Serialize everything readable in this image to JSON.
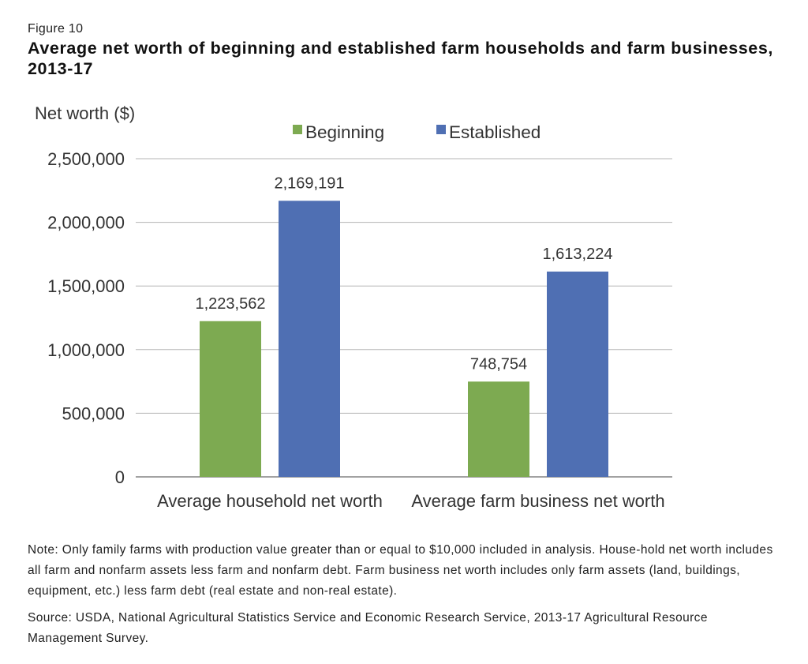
{
  "figure_label": "Figure 10",
  "title": "Average net worth of beginning and established farm households and farm businesses, 2013-17",
  "note": "Note: Only family farms with production value greater than or equal to $10,000 included in analysis.  House-hold net worth includes all farm and nonfarm assets less farm and nonfarm debt. Farm business net worth includes only farm assets (land, buildings, equipment, etc.) less farm debt (real estate and non-real estate).",
  "source": "Source: USDA, National Agricultural Statistics Service and Economic Research Service, 2013-17 Agricultural Resource Management Survey.",
  "chart_data": {
    "type": "bar",
    "ylabel": "Net worth ($)",
    "ylim": [
      0,
      2500000
    ],
    "yticks": [
      0,
      500000,
      1000000,
      1500000,
      2000000,
      2500000
    ],
    "ytick_labels": [
      "0",
      "500,000",
      "1,000,000",
      "1,500,000",
      "2,000,000",
      "2,500,000"
    ],
    "categories": [
      "Average household net worth",
      "Average farm business net worth"
    ],
    "series": [
      {
        "name": "Beginning",
        "color": "#7daa51",
        "values": [
          1223562,
          748754
        ],
        "labels": [
          "1,223,562",
          "748,754"
        ]
      },
      {
        "name": "Established",
        "color": "#4f6fb3",
        "values": [
          2169191,
          1613224
        ],
        "labels": [
          "2,169,191",
          "1,613,224"
        ]
      }
    ],
    "grid": true,
    "legend": "top-center"
  }
}
